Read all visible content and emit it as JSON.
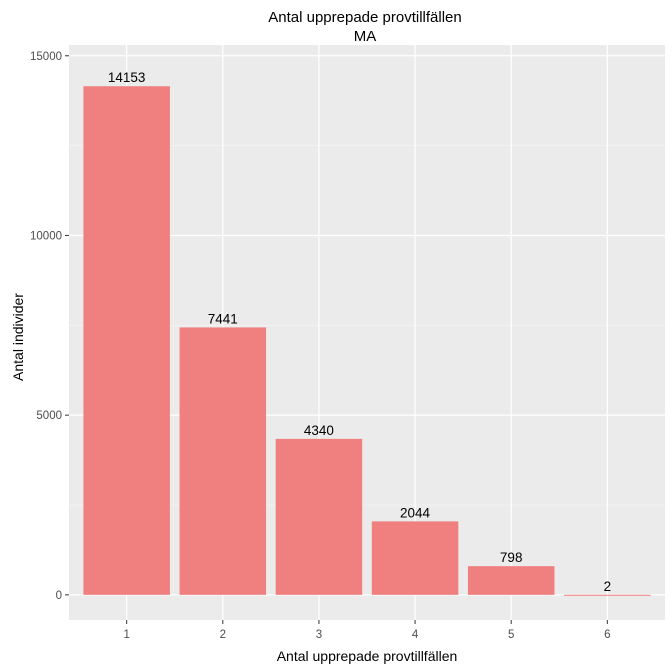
{
  "chart_data": {
    "type": "bar",
    "title": "Antal upprepade provtillfällen",
    "subtitle": "MA",
    "xlabel": "Antal upprepade provtillfällen",
    "ylabel": "Antal individer",
    "categories": [
      "1",
      "2",
      "3",
      "4",
      "5",
      "6"
    ],
    "values": [
      14153,
      7441,
      4340,
      2044,
      798,
      2
    ],
    "data_labels": [
      "14153",
      "7441",
      "4340",
      "2044",
      "798",
      "2"
    ],
    "y_ticks": [
      0,
      5000,
      10000,
      15000
    ],
    "y_tick_labels": [
      "0",
      "5000",
      "10000",
      "15000"
    ],
    "ylim": [
      -700,
      15300
    ],
    "grid": true,
    "colors": {
      "bar": "#f08080",
      "panel_background": "#ebebeb",
      "grid_major": "#ffffff",
      "grid_minor": "#f5f5f5"
    }
  }
}
